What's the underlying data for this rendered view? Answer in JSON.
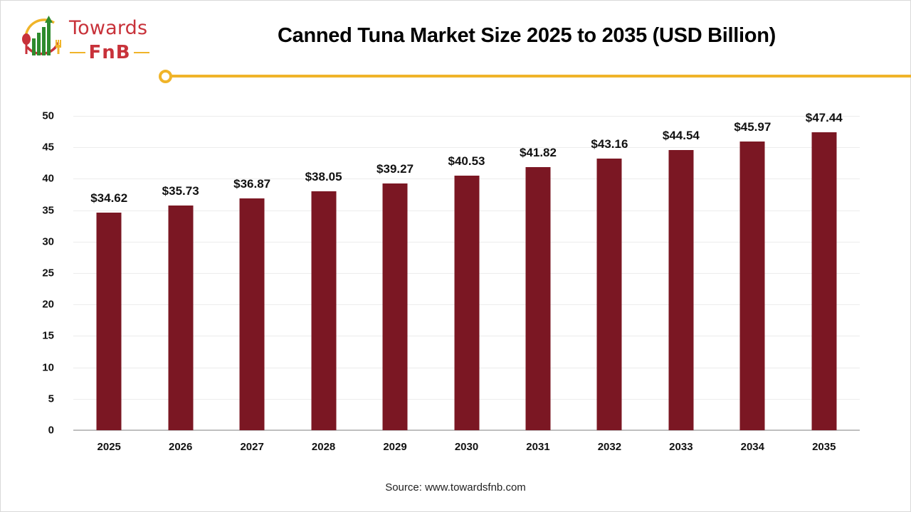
{
  "brand": {
    "name_line1": "Towards",
    "name_line2": "FnB",
    "colors": {
      "red": "#c8323a",
      "green": "#2e8b2e",
      "yellow": "#f0b429"
    }
  },
  "header": {
    "title": "Canned Tuna Market Size 2025 to 2035 (USD Billion)"
  },
  "footer": {
    "source": "Source: www.towardsfnb.com"
  },
  "chart_data": {
    "type": "bar",
    "title": "Canned Tuna Market Size 2025 to 2035 (USD Billion)",
    "xlabel": "",
    "ylabel": "",
    "categories": [
      "2025",
      "2026",
      "2027",
      "2028",
      "2029",
      "2030",
      "2031",
      "2032",
      "2033",
      "2034",
      "2035"
    ],
    "values": [
      34.62,
      35.73,
      36.87,
      38.05,
      39.27,
      40.53,
      41.82,
      43.16,
      44.54,
      45.97,
      47.44
    ],
    "data_labels": [
      "$34.62",
      "$35.73",
      "$36.87",
      "$38.05",
      "$39.27",
      "$40.53",
      "$41.82",
      "$43.16",
      "$44.54",
      "$45.97",
      "$47.44"
    ],
    "ylim": [
      0,
      50
    ],
    "yticks": [
      "0",
      "5",
      "10",
      "15",
      "20",
      "25",
      "30",
      "35",
      "40",
      "45",
      "50"
    ],
    "grid": true,
    "legend": null,
    "bar_color": "#7b1723"
  }
}
